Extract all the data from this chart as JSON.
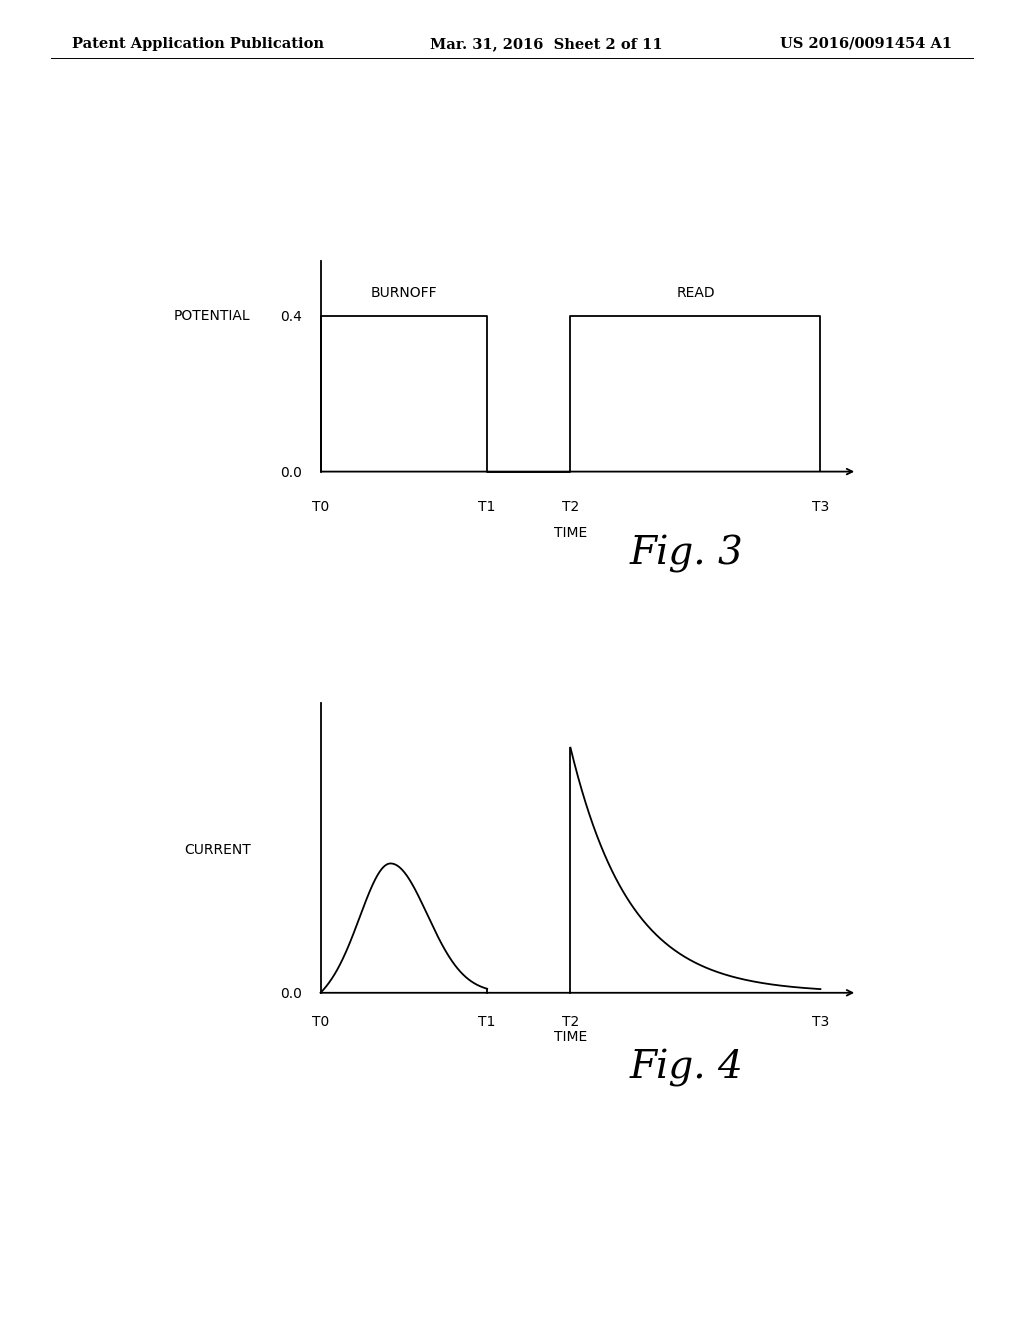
{
  "header_left": "Patent Application Publication",
  "header_mid": "Mar. 31, 2016  Sheet 2 of 11",
  "header_right": "US 2016/0091454 A1",
  "fig3_label": "Fig. 3",
  "fig4_label": "Fig. 4",
  "fig3_ylabel": "POTENTIAL",
  "fig3_xlabel": "TIME",
  "fig3_ytick_labels": [
    "0.0",
    "0.4"
  ],
  "fig3_xtick_labels": [
    "T0",
    "T1",
    "T2",
    "T3"
  ],
  "fig3_burnoff_label": "BURNOFF",
  "fig3_read_label": "READ",
  "fig4_ylabel": "CURRENT",
  "fig4_xlabel": "TIME",
  "fig4_ytick_labels": [
    "0.0"
  ],
  "fig4_xtick_labels": [
    "T0",
    "T1",
    "T2",
    "T3"
  ],
  "bg_color": "#ffffff",
  "line_color": "#000000",
  "text_color": "#000000",
  "header_fontsize": 10.5,
  "axis_label_fontsize": 10,
  "tick_fontsize": 10,
  "fig_label_fontsize": 28
}
